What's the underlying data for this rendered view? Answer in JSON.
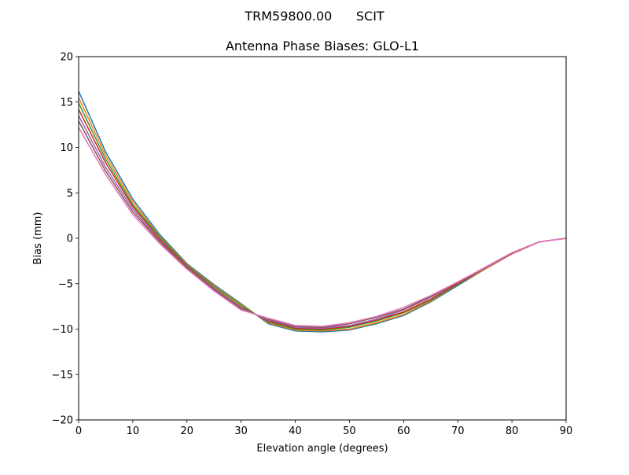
{
  "suptitle": "TRM59800.00      SCIT",
  "chart_data": {
    "type": "line",
    "title": "Antenna Phase Biases: GLO-L1",
    "xlabel": "Elevation angle (degrees)",
    "ylabel": "Bias (mm)",
    "xlim": [
      0,
      90
    ],
    "ylim": [
      -20,
      20
    ],
    "xticks": [
      0,
      10,
      20,
      30,
      40,
      50,
      60,
      70,
      80,
      90
    ],
    "yticks": [
      -20,
      -15,
      -10,
      -5,
      0,
      5,
      10,
      15,
      20
    ],
    "xtick_labels": [
      "0",
      "10",
      "20",
      "30",
      "40",
      "50",
      "60",
      "70",
      "80",
      "90"
    ],
    "ytick_labels": [
      "−20",
      "−15",
      "−10",
      "−5",
      "0",
      "5",
      "10",
      "15",
      "20"
    ],
    "grid": false,
    "legend": "none",
    "colors": [
      "#1f77b4",
      "#ff7f0e",
      "#2ca02c",
      "#d62728",
      "#9467bd",
      "#8c564b",
      "#e377c2",
      "#7f7f7f",
      "#bcbd22",
      "#17becf"
    ],
    "x": [
      0,
      5,
      10,
      15,
      20,
      25,
      30,
      35,
      40,
      45,
      50,
      55,
      60,
      65,
      70,
      75,
      80,
      85,
      90
    ],
    "series": [
      {
        "values": [
          16.2,
          9.5,
          4.3,
          0.4,
          -2.8,
          -5.1,
          -7.2,
          -9.4,
          -10.2,
          -10.3,
          -10.1,
          -9.4,
          -8.5,
          -7.0,
          -5.2,
          -3.4,
          -1.7,
          -0.4,
          0
        ]
      },
      {
        "values": [
          15.5,
          9.1,
          4.0,
          0.2,
          -2.9,
          -5.2,
          -7.3,
          -9.3,
          -10.1,
          -10.2,
          -10.0,
          -9.3,
          -8.4,
          -6.9,
          -5.1,
          -3.4,
          -1.7,
          -0.4,
          0
        ]
      },
      {
        "values": [
          14.9,
          8.7,
          3.7,
          0.1,
          -3.0,
          -5.3,
          -7.4,
          -9.2,
          -10.0,
          -10.1,
          -9.8,
          -9.1,
          -8.2,
          -6.8,
          -5.1,
          -3.3,
          -1.7,
          -0.4,
          0
        ]
      },
      {
        "values": [
          14.2,
          8.3,
          3.5,
          -0.1,
          -3.1,
          -5.5,
          -7.6,
          -9.1,
          -9.9,
          -10.0,
          -9.7,
          -9.0,
          -8.1,
          -6.7,
          -5.0,
          -3.3,
          -1.7,
          -0.4,
          0
        ]
      },
      {
        "values": [
          13.5,
          7.8,
          3.2,
          -0.3,
          -3.2,
          -5.6,
          -7.7,
          -9.0,
          -9.8,
          -9.9,
          -9.6,
          -8.9,
          -7.9,
          -6.5,
          -4.9,
          -3.3,
          -1.6,
          -0.4,
          0
        ]
      },
      {
        "values": [
          12.9,
          7.4,
          2.9,
          -0.4,
          -3.3,
          -5.7,
          -7.8,
          -8.9,
          -9.7,
          -9.8,
          -9.4,
          -8.7,
          -7.8,
          -6.4,
          -4.9,
          -3.2,
          -1.6,
          -0.4,
          0
        ]
      },
      {
        "values": [
          12.2,
          7.0,
          2.6,
          -0.6,
          -3.4,
          -5.8,
          -7.9,
          -8.8,
          -9.6,
          -9.7,
          -9.3,
          -8.6,
          -7.6,
          -6.3,
          -4.8,
          -3.2,
          -1.6,
          -0.4,
          0
        ]
      }
    ]
  }
}
